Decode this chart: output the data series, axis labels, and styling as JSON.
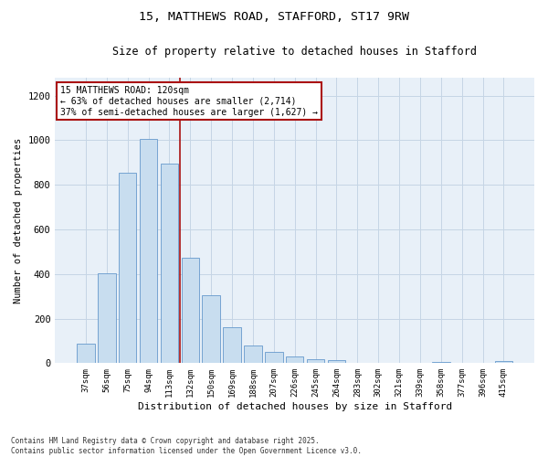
{
  "title1": "15, MATTHEWS ROAD, STAFFORD, ST17 9RW",
  "title2": "Size of property relative to detached houses in Stafford",
  "xlabel": "Distribution of detached houses by size in Stafford",
  "ylabel": "Number of detached properties",
  "categories": [
    "37sqm",
    "56sqm",
    "75sqm",
    "94sqm",
    "113sqm",
    "132sqm",
    "150sqm",
    "169sqm",
    "188sqm",
    "207sqm",
    "226sqm",
    "245sqm",
    "264sqm",
    "283sqm",
    "302sqm",
    "321sqm",
    "339sqm",
    "358sqm",
    "377sqm",
    "396sqm",
    "415sqm"
  ],
  "values": [
    88,
    403,
    855,
    1005,
    893,
    473,
    305,
    160,
    80,
    52,
    30,
    17,
    12,
    0,
    0,
    0,
    0,
    5,
    0,
    0,
    8
  ],
  "bar_color": "#c8ddef",
  "bar_edge_color": "#6699cc",
  "vline_x": 4.5,
  "vline_color": "#aa1111",
  "annotation_text": "15 MATTHEWS ROAD: 120sqm\n← 63% of detached houses are smaller (2,714)\n37% of semi-detached houses are larger (1,627) →",
  "annotation_box_color": "#ffffff",
  "annotation_edge_color": "#aa1111",
  "ylim": [
    0,
    1280
  ],
  "yticks": [
    0,
    200,
    400,
    600,
    800,
    1000,
    1200
  ],
  "grid_color": "#c5d5e5",
  "bg_color": "#e8f0f8",
  "footer": "Contains HM Land Registry data © Crown copyright and database right 2025.\nContains public sector information licensed under the Open Government Licence v3.0.",
  "fig_width": 6.0,
  "fig_height": 5.0,
  "dpi": 100
}
